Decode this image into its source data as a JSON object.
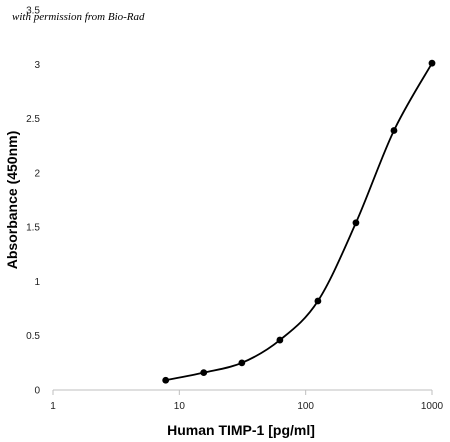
{
  "note": "with permission from Bio-Rad",
  "chart_data": {
    "type": "line",
    "xlabel": "Human TIMP-1 [pg/ml]",
    "ylabel": "Absorbance (450nm)",
    "xscale": "log",
    "xlim": [
      1,
      1000
    ],
    "ylim": [
      0,
      3.5
    ],
    "xticks": [
      "1",
      "10",
      "100",
      "1000"
    ],
    "xtick_values": [
      1,
      10,
      100,
      1000
    ],
    "yticks": [
      "0",
      "0.5",
      "1",
      "1.5",
      "2",
      "2.5",
      "3",
      "3.5"
    ],
    "ytick_values": [
      0,
      0.5,
      1,
      1.5,
      2,
      2.5,
      3,
      3.5
    ],
    "grid": false,
    "series": [
      {
        "x": [
          7.8,
          15.6,
          31.25,
          62.5,
          125,
          250,
          500,
          1000
        ],
        "y": [
          0.09,
          0.16,
          0.25,
          0.46,
          0.82,
          1.54,
          2.39,
          3.01
        ],
        "color": "#000000",
        "marker": "circle",
        "smooth": true
      }
    ]
  }
}
